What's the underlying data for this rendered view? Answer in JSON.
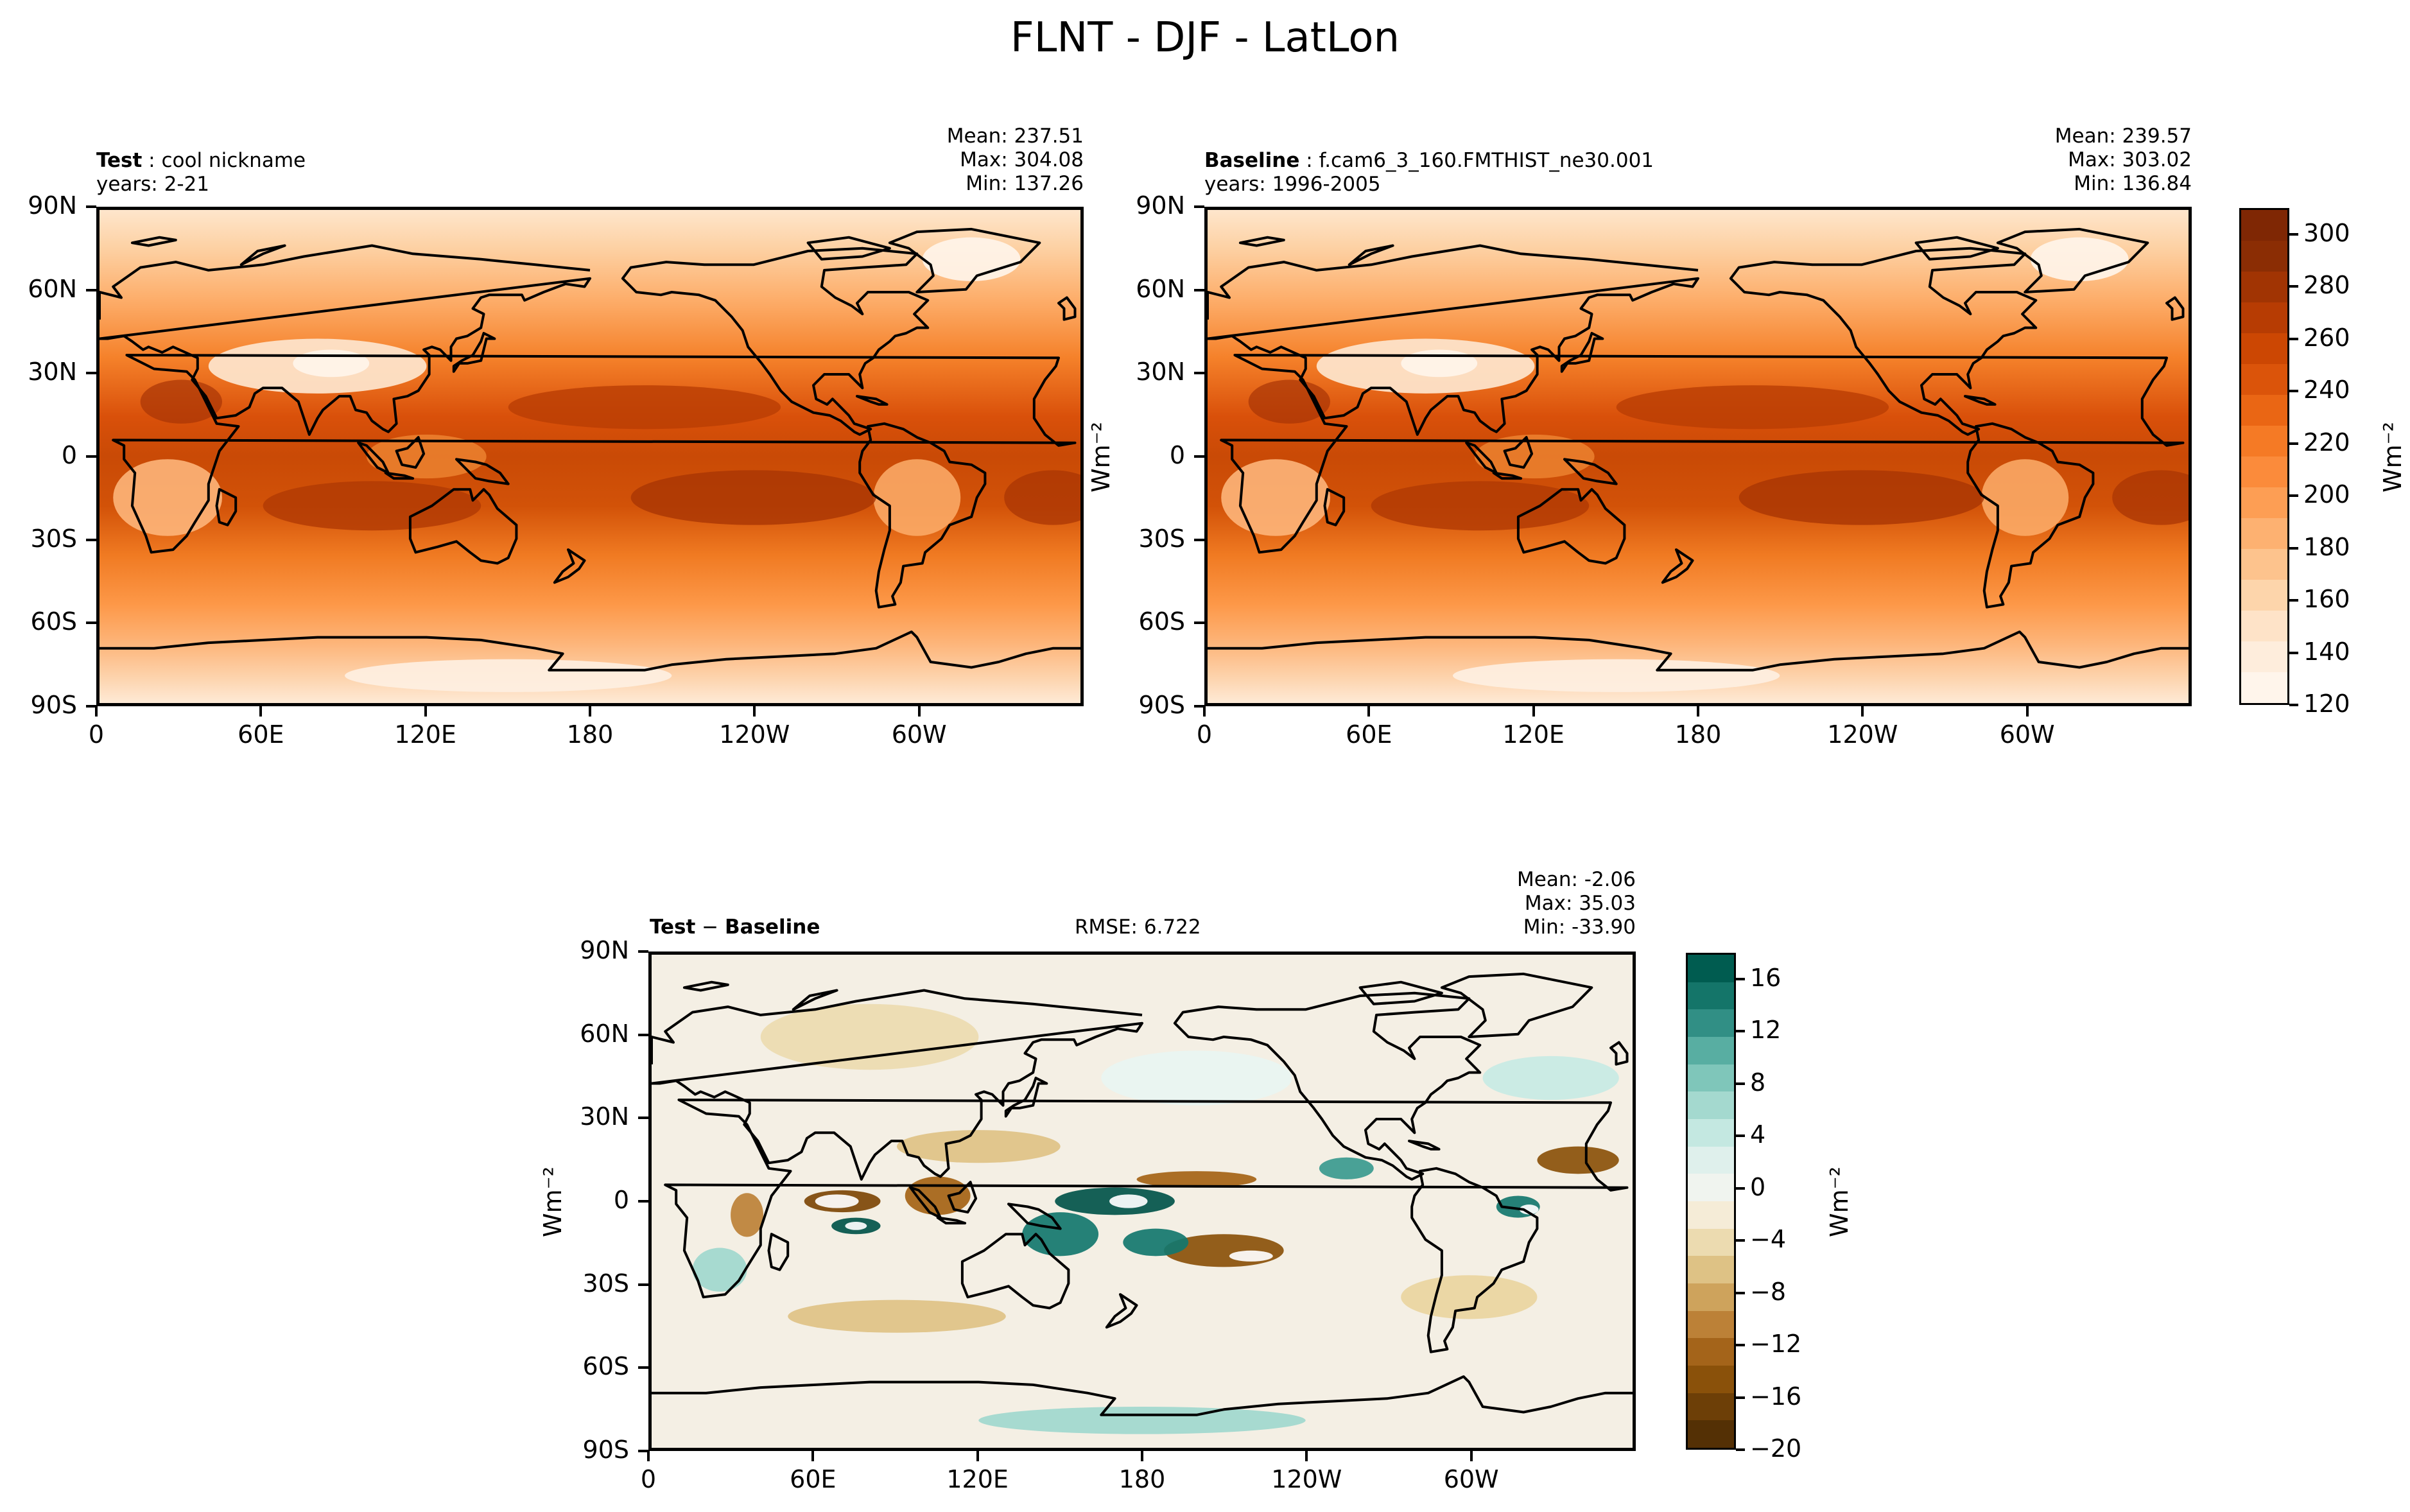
{
  "figure": {
    "title": "FLNT - DJF - LatLon"
  },
  "colors": {
    "orange_ramp": [
      "#fff5eb",
      "#fee9d4",
      "#fddbb8",
      "#fdc590",
      "#fdaa66",
      "#fd8f40",
      "#f57520",
      "#e45a0a",
      "#cc4402",
      "#a63603",
      "#7f2704"
    ],
    "diff_ramp_neg": [
      "#543005",
      "#7d4607",
      "#a46315",
      "#c18a3a",
      "#d8b167",
      "#e9d5a0",
      "#f5ebd0"
    ],
    "diff_ramp_pos": [
      "#e8f5f2",
      "#c7eae4",
      "#9fd8ce",
      "#6cbdb2",
      "#3a9a8f",
      "#12776e",
      "#01544a"
    ]
  },
  "chart_data": [
    {
      "type": "heatmap",
      "panel": "test",
      "name_label": "Test",
      "name_value": "cool nickname",
      "years": "years: 2-21",
      "stats": {
        "mean": "Mean: 237.51",
        "max": "Max: 304.08",
        "min": "Min: 137.26"
      },
      "xticks": [
        "0",
        "60E",
        "120E",
        "180",
        "120W",
        "60W"
      ],
      "yticks": [
        "90N",
        "60N",
        "30N",
        "0",
        "30S",
        "60S",
        "90S"
      ],
      "xlim": [
        0,
        360
      ],
      "ylim": [
        -90,
        90
      ],
      "zonal_profile": {
        "lat": [
          90,
          60,
          30,
          0,
          -30,
          -60,
          -90
        ],
        "value": [
          160,
          190,
          245,
          265,
          255,
          205,
          150
        ]
      }
    },
    {
      "type": "heatmap",
      "panel": "baseline",
      "name_label": "Baseline",
      "name_value": "f.cam6_3_160.FMTHIST_ne30.001",
      "years": "years: 1996-2005",
      "stats": {
        "mean": "Mean: 239.57",
        "max": "Max: 303.02",
        "min": "Min: 136.84"
      },
      "xticks": [
        "0",
        "60E",
        "120E",
        "180",
        "120W",
        "60W"
      ],
      "yticks": [
        "90N",
        "60N",
        "30N",
        "0",
        "30S",
        "60S",
        "90S"
      ],
      "xlim": [
        0,
        360
      ],
      "ylim": [
        -90,
        90
      ],
      "colorbar": {
        "ticks": [
          "300",
          "280",
          "260",
          "240",
          "220",
          "200",
          "180",
          "160",
          "140",
          "120"
        ],
        "range": [
          120,
          310
        ],
        "label": "Wm⁻²"
      }
    },
    {
      "type": "heatmap",
      "panel": "difference",
      "name_label": "Test",
      "name_value": "Baseline",
      "rmse": "RMSE: 6.722",
      "stats": {
        "mean": "Mean: -2.06",
        "max": "Max: 35.03",
        "min": "Min: -33.90"
      },
      "xticks": [
        "0",
        "60E",
        "120E",
        "180",
        "120W",
        "60W"
      ],
      "yticks": [
        "90N",
        "60N",
        "30N",
        "0",
        "30S",
        "60S",
        "90S"
      ],
      "xlim": [
        0,
        360
      ],
      "ylim": [
        -90,
        90
      ],
      "ylabel": "Wm⁻²",
      "colorbar": {
        "ticks": [
          "16",
          "12",
          "8",
          "4",
          "0",
          "−4",
          "−8",
          "−12",
          "−16",
          "−20"
        ],
        "range": [
          -20,
          18
        ],
        "label": "Wm⁻²"
      }
    }
  ],
  "side_label": "Wm⁻²"
}
